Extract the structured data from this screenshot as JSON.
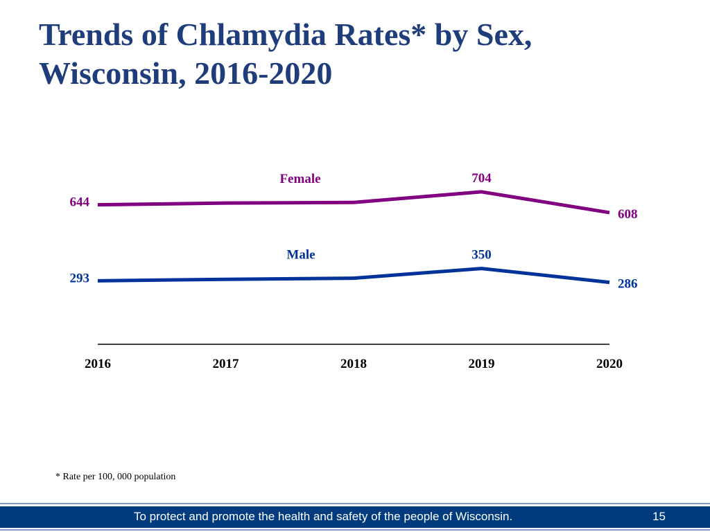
{
  "slide": {
    "title_line1": "Trends of Chlamydia Rates* by Sex,",
    "title_line2": "Wisconsin, 2016-2020",
    "footnote": "* Rate per 100, 000 population",
    "footer_text": "To protect and promote the health and safety of the people of Wisconsin.",
    "page_number": "15"
  },
  "colors": {
    "title": "#1f3d7a",
    "female": "#800080",
    "male": "#003399",
    "axis": "#000000",
    "footer_bar": "#003c7d",
    "footer_rule": "#7f9cc4"
  },
  "chart_data": {
    "type": "line",
    "title": "Trends of Chlamydia Rates* by Sex, Wisconsin, 2016-2020",
    "categories": [
      "2016",
      "2017",
      "2018",
      "2019",
      "2020"
    ],
    "series": [
      {
        "name": "Female",
        "values": [
          644,
          652,
          655,
          704,
          608
        ]
      },
      {
        "name": "Male",
        "values": [
          293,
          300,
          305,
          350,
          286
        ]
      }
    ],
    "data_labels": {
      "Female": [
        "644",
        "",
        "",
        "704",
        "608"
      ],
      "Male": [
        "293",
        "",
        "",
        "350",
        "286"
      ]
    },
    "ylim": [
      0,
      950
    ],
    "grid": false,
    "legend": "inline series labels",
    "xlabel": "",
    "ylabel": ""
  }
}
